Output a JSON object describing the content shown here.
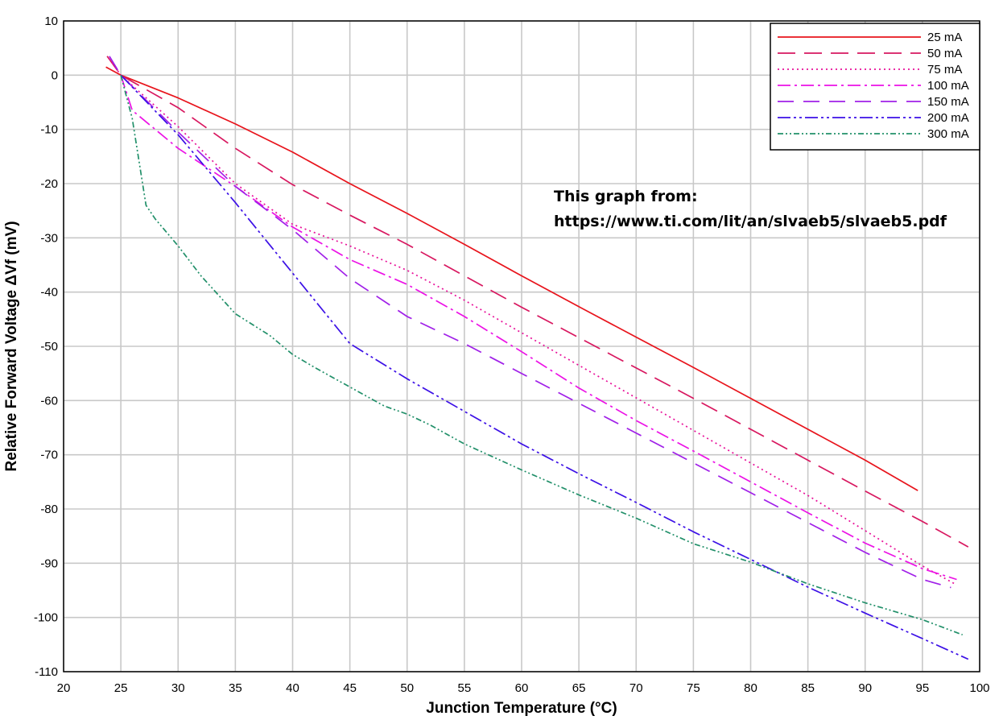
{
  "chart_data": {
    "type": "line",
    "xlabel": "Junction Temperature (°C)",
    "ylabel": "Relative Forward Voltage ΔVf (mV)",
    "xlim": [
      20,
      100
    ],
    "ylim": [
      -110,
      10
    ],
    "xticks": [
      20,
      25,
      30,
      35,
      40,
      45,
      50,
      55,
      60,
      65,
      70,
      75,
      80,
      85,
      90,
      95,
      100
    ],
    "yticks": [
      10,
      0,
      -10,
      -20,
      -30,
      -40,
      -50,
      -60,
      -70,
      -80,
      -90,
      -100,
      -110
    ],
    "grid": true,
    "legend_position": "top-right",
    "annotation": [
      "This graph from:",
      "https://www.ti.com/lit/an/slvaeb5/slvaeb5.pdf"
    ],
    "series": [
      {
        "name": "25 mA",
        "color": "#e8141c",
        "dash": "",
        "x": [
          23.7,
          25,
          30,
          35,
          40,
          45,
          50,
          55,
          60,
          65,
          70,
          75,
          80,
          85,
          90,
          94.6
        ],
        "y": [
          1.5,
          0,
          -4.2,
          -9,
          -14.2,
          -20,
          -25.5,
          -31.2,
          -37,
          -42.7,
          -48.3,
          -53.9,
          -59.6,
          -65.3,
          -71,
          -76.6
        ]
      },
      {
        "name": "50 mA",
        "color": "#d81860",
        "dash": "22,11",
        "x": [
          23.8,
          25,
          30,
          35,
          40,
          45,
          50,
          55,
          60,
          65,
          70,
          75,
          80,
          85,
          90,
          95,
          99
        ],
        "y": [
          3.5,
          0,
          -6,
          -13.5,
          -20.2,
          -25.8,
          -31.2,
          -37,
          -42.8,
          -48.4,
          -54,
          -59.6,
          -65.3,
          -71,
          -76.7,
          -82.3,
          -87
        ]
      },
      {
        "name": "75 mA",
        "color": "#e8109a",
        "dash": "2,4",
        "x": [
          24,
          25,
          30,
          35,
          40,
          45,
          50,
          55,
          60,
          65,
          70,
          75,
          80,
          85,
          90,
          95,
          98
        ],
        "y": [
          3,
          0,
          -9.5,
          -20,
          -27.5,
          -31.5,
          -36,
          -41.5,
          -47.5,
          -53.5,
          -59.5,
          -65.5,
          -71.5,
          -77.5,
          -84,
          -90.5,
          -94
        ]
      },
      {
        "name": "100 mA",
        "color": "#ec12e6",
        "dash": "16,5,3,5",
        "x": [
          25,
          26,
          30,
          35,
          40,
          45,
          50,
          55,
          60,
          65,
          70,
          75,
          80,
          85,
          90,
          95,
          98
        ],
        "y": [
          0,
          -6.5,
          -13.5,
          -20.5,
          -28,
          -34,
          -38.6,
          -44.5,
          -51,
          -57.7,
          -63.7,
          -69.3,
          -75,
          -80.7,
          -86.3,
          -91,
          -93
        ]
      },
      {
        "name": "150 mA",
        "color": "#a020e8",
        "dash": "20,12",
        "x": [
          24,
          25,
          30,
          35,
          40,
          45,
          50,
          55,
          60,
          65,
          70,
          75,
          80,
          85,
          90,
          95,
          97.5
        ],
        "y": [
          3.5,
          0,
          -10.5,
          -20.5,
          -28.5,
          -37.5,
          -44.5,
          -49.5,
          -55,
          -60.5,
          -66,
          -71.5,
          -77,
          -82.5,
          -88,
          -93,
          -94.5
        ]
      },
      {
        "name": "200 mA",
        "color": "#3c10e6",
        "dash": "16,4,3,4,3,4",
        "x": [
          25,
          30,
          35,
          40,
          45,
          50,
          55,
          60,
          65,
          70,
          75,
          80,
          85,
          90,
          95,
          99
        ],
        "y": [
          0,
          -11,
          -23.5,
          -36.5,
          -49.5,
          -56,
          -62,
          -68,
          -73.5,
          -78.8,
          -84.2,
          -89.3,
          -94.4,
          -99.2,
          -103.9,
          -107.7
        ]
      },
      {
        "name": "300 mA",
        "color": "#22906a",
        "dash": "7,3,2,3,2,3",
        "x": [
          25,
          26,
          27.2,
          28,
          30,
          32,
          35,
          38,
          40,
          42,
          45,
          48,
          50,
          52,
          55,
          60,
          65,
          70,
          75,
          80,
          85,
          90,
          95,
          98.5
        ],
        "y": [
          0,
          -8,
          -24,
          -26.5,
          -31.5,
          -37,
          -44,
          -48,
          -51.5,
          -54,
          -57.5,
          -61,
          -62.5,
          -64.5,
          -68,
          -72.8,
          -77.4,
          -81.7,
          -86.4,
          -89.8,
          -93.8,
          -97.3,
          -100.4,
          -103.2
        ]
      }
    ]
  }
}
